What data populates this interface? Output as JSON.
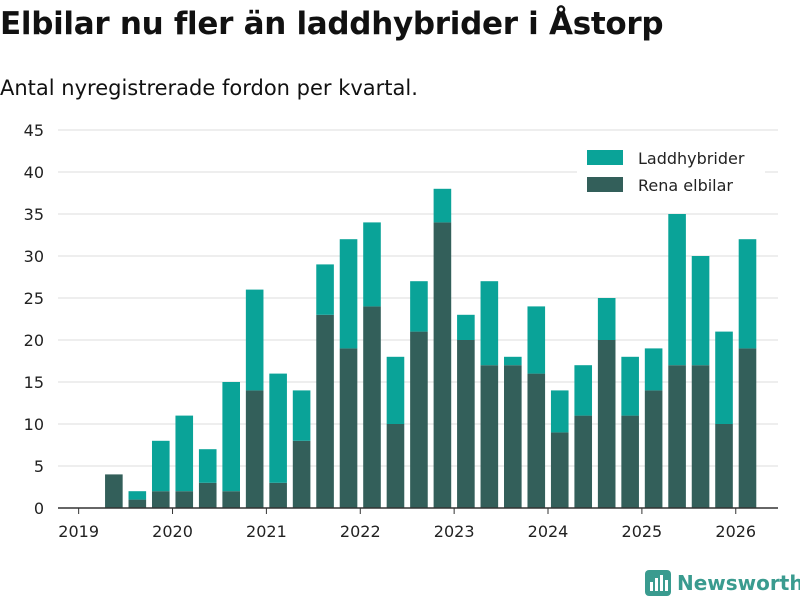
{
  "title": "Elbilar nu fler än laddhybrider i Åstorp",
  "subtitle": "Antal nyregistrerade fordon per kvartal.",
  "brand": {
    "name": "Newsworthy",
    "icon": "newsworthy-logo-icon"
  },
  "colors": {
    "laddhybrider": "#0aa398",
    "rena_elbilar": "#335f5a",
    "grid": "#dddddd",
    "axis": "#333333"
  },
  "chart_data": {
    "type": "bar",
    "stacked": true,
    "x_start": 2019.0,
    "x_step": 0.25,
    "x_offset": 0.125,
    "xlim": [
      2018.78,
      2026.45
    ],
    "ylim": [
      0,
      45
    ],
    "yticks": [
      0,
      5,
      10,
      15,
      20,
      25,
      30,
      35,
      40,
      45
    ],
    "xticks": [
      2019,
      2020,
      2021,
      2022,
      2023,
      2024,
      2025,
      2026
    ],
    "xlabel": "",
    "ylabel": "",
    "grid": true,
    "legend_position": "top-right",
    "series": [
      {
        "name": "Rena elbilar",
        "color": "#335f5a",
        "values": [
          0,
          4,
          1,
          2,
          2,
          3,
          2,
          14,
          3,
          8,
          23,
          19,
          24,
          10,
          21,
          34,
          20,
          17,
          17,
          16,
          9,
          11,
          20,
          11,
          14,
          17,
          17,
          10,
          19
        ]
      },
      {
        "name": "Laddhybrider",
        "color": "#0aa398",
        "values": [
          0,
          0,
          1,
          6,
          9,
          4,
          13,
          12,
          13,
          6,
          6,
          13,
          10,
          8,
          6,
          4,
          3,
          10,
          1,
          8,
          5,
          6,
          5,
          7,
          5,
          18,
          13,
          11,
          13
        ]
      }
    ],
    "legend_order": [
      "Laddhybrider",
      "Rena elbilar"
    ]
  }
}
